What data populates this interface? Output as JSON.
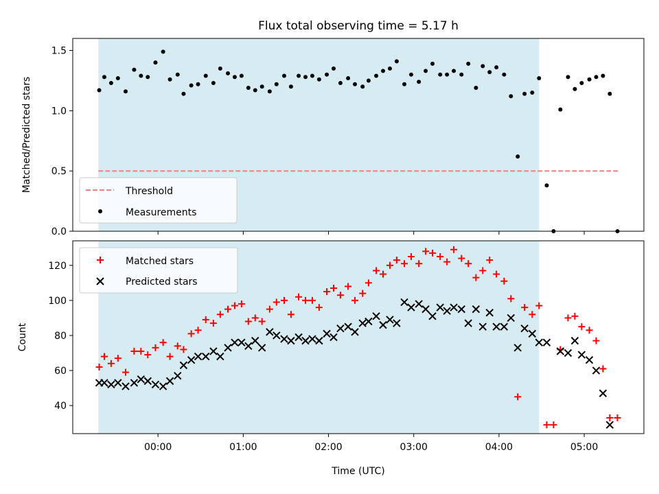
{
  "chart_data": {
    "type": "scatter",
    "title": "Flux total observing time = 5.17 h",
    "xlabel": "Time (UTC)",
    "x_unit": "hours relative to 00:00 UTC",
    "xlim": [
      -1.0,
      5.7
    ],
    "xticks": [
      {
        "value": 0,
        "label": "00:00"
      },
      {
        "value": 1,
        "label": "01:00"
      },
      {
        "value": 2,
        "label": "02:00"
      },
      {
        "value": 3,
        "label": "03:00"
      },
      {
        "value": 4,
        "label": "04:00"
      },
      {
        "value": 5,
        "label": "05:00"
      }
    ],
    "highlight_span": {
      "x_start": -0.7,
      "x_end": 4.47,
      "color": "#add8e6"
    },
    "top_panel": {
      "ylabel": "Matched/Predicted stars",
      "ylim": [
        0,
        1.6
      ],
      "yticks": [
        0.0,
        0.5,
        1.0,
        1.5
      ],
      "ytick_labels": [
        "0.0",
        "0.5",
        "1.0",
        "1.5"
      ],
      "legend_position": "lower-left",
      "threshold": {
        "name": "Threshold",
        "value": 0.5,
        "x_start": -0.7,
        "x_end": 5.4,
        "color": "#f08080"
      },
      "measurements": {
        "name": "Measurements",
        "color": "#000000",
        "points": [
          [
            -0.69,
            1.17
          ],
          [
            -0.63,
            1.28
          ],
          [
            -0.55,
            1.23
          ],
          [
            -0.47,
            1.27
          ],
          [
            -0.38,
            1.16
          ],
          [
            -0.28,
            1.34
          ],
          [
            -0.2,
            1.29
          ],
          [
            -0.12,
            1.28
          ],
          [
            -0.03,
            1.4
          ],
          [
            0.06,
            1.49
          ],
          [
            0.14,
            1.26
          ],
          [
            0.23,
            1.3
          ],
          [
            0.3,
            1.14
          ],
          [
            0.39,
            1.21
          ],
          [
            0.47,
            1.22
          ],
          [
            0.56,
            1.29
          ],
          [
            0.65,
            1.23
          ],
          [
            0.73,
            1.35
          ],
          [
            0.82,
            1.31
          ],
          [
            0.9,
            1.28
          ],
          [
            0.98,
            1.29
          ],
          [
            1.06,
            1.19
          ],
          [
            1.14,
            1.17
          ],
          [
            1.22,
            1.2
          ],
          [
            1.31,
            1.16
          ],
          [
            1.39,
            1.22
          ],
          [
            1.48,
            1.29
          ],
          [
            1.56,
            1.2
          ],
          [
            1.65,
            1.29
          ],
          [
            1.73,
            1.28
          ],
          [
            1.81,
            1.29
          ],
          [
            1.89,
            1.26
          ],
          [
            1.98,
            1.3
          ],
          [
            2.06,
            1.35
          ],
          [
            2.14,
            1.23
          ],
          [
            2.23,
            1.27
          ],
          [
            2.31,
            1.22
          ],
          [
            2.4,
            1.2
          ],
          [
            2.47,
            1.25
          ],
          [
            2.56,
            1.29
          ],
          [
            2.64,
            1.33
          ],
          [
            2.72,
            1.35
          ],
          [
            2.8,
            1.41
          ],
          [
            2.89,
            1.22
          ],
          [
            2.97,
            1.3
          ],
          [
            3.06,
            1.24
          ],
          [
            3.14,
            1.33
          ],
          [
            3.22,
            1.39
          ],
          [
            3.31,
            1.3
          ],
          [
            3.39,
            1.3
          ],
          [
            3.47,
            1.33
          ],
          [
            3.56,
            1.3
          ],
          [
            3.64,
            1.39
          ],
          [
            3.73,
            1.19
          ],
          [
            3.81,
            1.37
          ],
          [
            3.89,
            1.32
          ],
          [
            3.97,
            1.36
          ],
          [
            4.06,
            1.3
          ],
          [
            4.14,
            1.12
          ],
          [
            4.22,
            0.62
          ],
          [
            4.3,
            1.14
          ],
          [
            4.39,
            1.15
          ],
          [
            4.47,
            1.27
          ],
          [
            4.56,
            0.38
          ],
          [
            4.64,
            0.0
          ],
          [
            4.72,
            1.01
          ],
          [
            4.81,
            1.28
          ],
          [
            4.89,
            1.18
          ],
          [
            4.97,
            1.23
          ],
          [
            5.06,
            1.26
          ],
          [
            5.14,
            1.28
          ],
          [
            5.22,
            1.29
          ],
          [
            5.3,
            1.14
          ],
          [
            5.39,
            0.0
          ]
        ]
      }
    },
    "bottom_panel": {
      "ylabel": "Count",
      "ylim": [
        24,
        134
      ],
      "yticks": [
        40,
        60,
        80,
        100,
        120
      ],
      "ytick_labels": [
        "40",
        "60",
        "80",
        "100",
        "120"
      ],
      "legend_position": "top-left",
      "series": [
        {
          "name": "Matched stars",
          "marker": "plus",
          "color": "#ff0000",
          "points": [
            [
              -0.69,
              62
            ],
            [
              -0.63,
              68
            ],
            [
              -0.55,
              64
            ],
            [
              -0.47,
              67
            ],
            [
              -0.38,
              59
            ],
            [
              -0.28,
              71
            ],
            [
              -0.2,
              71
            ],
            [
              -0.12,
              69
            ],
            [
              -0.03,
              73
            ],
            [
              0.06,
              76
            ],
            [
              0.14,
              68
            ],
            [
              0.23,
              74
            ],
            [
              0.3,
              72
            ],
            [
              0.39,
              81
            ],
            [
              0.47,
              83
            ],
            [
              0.56,
              89
            ],
            [
              0.65,
              87
            ],
            [
              0.73,
              92
            ],
            [
              0.82,
              95
            ],
            [
              0.9,
              97
            ],
            [
              0.98,
              98
            ],
            [
              1.06,
              88
            ],
            [
              1.14,
              90
            ],
            [
              1.22,
              88
            ],
            [
              1.31,
              95
            ],
            [
              1.39,
              99
            ],
            [
              1.48,
              100
            ],
            [
              1.56,
              92
            ],
            [
              1.65,
              102
            ],
            [
              1.73,
              100
            ],
            [
              1.81,
              100
            ],
            [
              1.89,
              96
            ],
            [
              1.98,
              105
            ],
            [
              2.06,
              107
            ],
            [
              2.14,
              103
            ],
            [
              2.23,
              108
            ],
            [
              2.31,
              100
            ],
            [
              2.4,
              104
            ],
            [
              2.47,
              110
            ],
            [
              2.56,
              117
            ],
            [
              2.64,
              115
            ],
            [
              2.72,
              120
            ],
            [
              2.8,
              123
            ],
            [
              2.89,
              121
            ],
            [
              2.97,
              125
            ],
            [
              3.06,
              121
            ],
            [
              3.14,
              128
            ],
            [
              3.22,
              127
            ],
            [
              3.31,
              125
            ],
            [
              3.39,
              122
            ],
            [
              3.47,
              129
            ],
            [
              3.56,
              124
            ],
            [
              3.64,
              121
            ],
            [
              3.73,
              113
            ],
            [
              3.81,
              117
            ],
            [
              3.89,
              123
            ],
            [
              3.97,
              115
            ],
            [
              4.06,
              111
            ],
            [
              4.14,
              101
            ],
            [
              4.22,
              45
            ],
            [
              4.3,
              96
            ],
            [
              4.39,
              92
            ],
            [
              4.47,
              97
            ],
            [
              4.56,
              29
            ],
            [
              4.64,
              29
            ],
            [
              4.72,
              72
            ],
            [
              4.81,
              90
            ],
            [
              4.89,
              91
            ],
            [
              4.97,
              85
            ],
            [
              5.06,
              83
            ],
            [
              5.14,
              77
            ],
            [
              5.22,
              61
            ],
            [
              5.3,
              33
            ],
            [
              5.39,
              33
            ]
          ]
        },
        {
          "name": "Predicted stars",
          "marker": "x",
          "color": "#000000",
          "points": [
            [
              -0.69,
              53
            ],
            [
              -0.63,
              53
            ],
            [
              -0.55,
              52
            ],
            [
              -0.47,
              53
            ],
            [
              -0.38,
              51
            ],
            [
              -0.28,
              53
            ],
            [
              -0.2,
              55
            ],
            [
              -0.12,
              54
            ],
            [
              -0.03,
              52
            ],
            [
              0.06,
              51
            ],
            [
              0.14,
              54
            ],
            [
              0.23,
              57
            ],
            [
              0.3,
              63
            ],
            [
              0.39,
              66
            ],
            [
              0.47,
              68
            ],
            [
              0.56,
              68
            ],
            [
              0.65,
              71
            ],
            [
              0.73,
              68
            ],
            [
              0.82,
              73
            ],
            [
              0.9,
              76
            ],
            [
              0.98,
              76
            ],
            [
              1.06,
              74
            ],
            [
              1.14,
              77
            ],
            [
              1.22,
              73
            ],
            [
              1.31,
              82
            ],
            [
              1.39,
              80
            ],
            [
              1.48,
              78
            ],
            [
              1.56,
              77
            ],
            [
              1.65,
              79
            ],
            [
              1.73,
              77
            ],
            [
              1.81,
              78
            ],
            [
              1.89,
              77
            ],
            [
              1.98,
              81
            ],
            [
              2.06,
              79
            ],
            [
              2.14,
              84
            ],
            [
              2.23,
              85
            ],
            [
              2.31,
              82
            ],
            [
              2.4,
              87
            ],
            [
              2.47,
              88
            ],
            [
              2.56,
              91
            ],
            [
              2.64,
              86
            ],
            [
              2.72,
              89
            ],
            [
              2.8,
              87
            ],
            [
              2.89,
              99
            ],
            [
              2.97,
              96
            ],
            [
              3.06,
              98
            ],
            [
              3.14,
              95
            ],
            [
              3.22,
              91
            ],
            [
              3.31,
              96
            ],
            [
              3.39,
              94
            ],
            [
              3.47,
              96
            ],
            [
              3.56,
              95
            ],
            [
              3.64,
              87
            ],
            [
              3.73,
              95
            ],
            [
              3.81,
              85
            ],
            [
              3.89,
              93
            ],
            [
              3.97,
              85
            ],
            [
              4.06,
              85
            ],
            [
              4.14,
              90
            ],
            [
              4.22,
              73
            ],
            [
              4.3,
              84
            ],
            [
              4.39,
              81
            ],
            [
              4.47,
              76
            ],
            [
              4.56,
              76
            ],
            [
              4.72,
              71
            ],
            [
              4.81,
              70
            ],
            [
              4.89,
              77
            ],
            [
              4.97,
              69
            ],
            [
              5.06,
              66
            ],
            [
              5.14,
              60
            ],
            [
              5.22,
              47
            ],
            [
              5.3,
              29
            ]
          ]
        }
      ]
    }
  }
}
